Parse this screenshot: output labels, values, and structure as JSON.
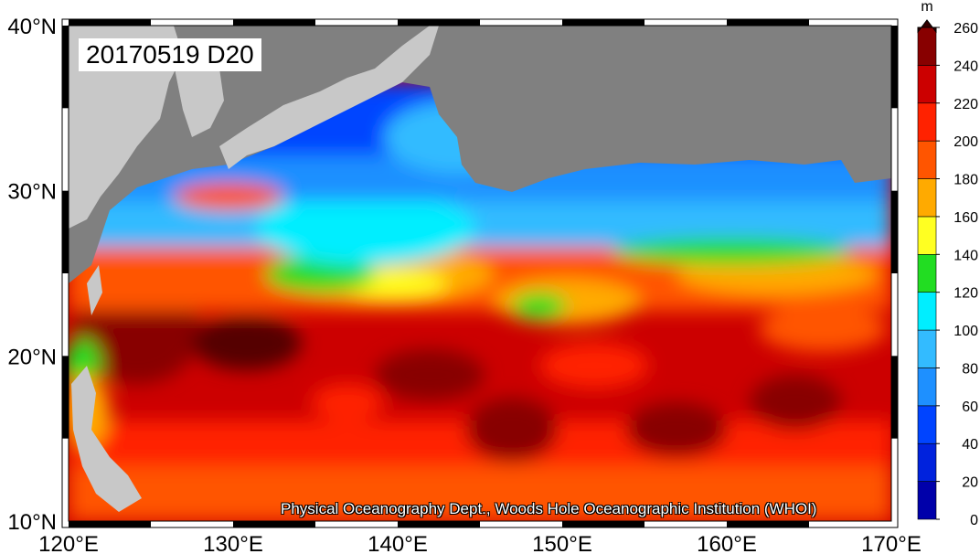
{
  "title": "20170519 D20",
  "credit": "Physical Oceanography Dept., Woods Hole Oceanographic Institution (WHOI)",
  "lon_axis": {
    "range": [
      120,
      170
    ],
    "ticks": [
      "120°E",
      "130°E",
      "140°E",
      "150°E",
      "160°E",
      "170°E"
    ]
  },
  "lat_axis": {
    "range": [
      10,
      40
    ],
    "ticks": [
      "10°N",
      "20°N",
      "30°N",
      "40°N"
    ]
  },
  "colorbar": {
    "unit": "m",
    "ticks": [
      "0",
      "20",
      "40",
      "60",
      "80",
      "100",
      "120",
      "140",
      "160",
      "180",
      "200",
      "220",
      "240",
      "260"
    ],
    "colors": [
      "#0000aa",
      "#0022dd",
      "#0044ff",
      "#1e90ff",
      "#33bbff",
      "#00eeff",
      "#22dd22",
      "#ffff22",
      "#ffaa00",
      "#ff5500",
      "#ff2200",
      "#cc0000",
      "#880000",
      "#330000"
    ]
  },
  "land_color": "#c8c8c8",
  "nodata_color": "#808080"
}
